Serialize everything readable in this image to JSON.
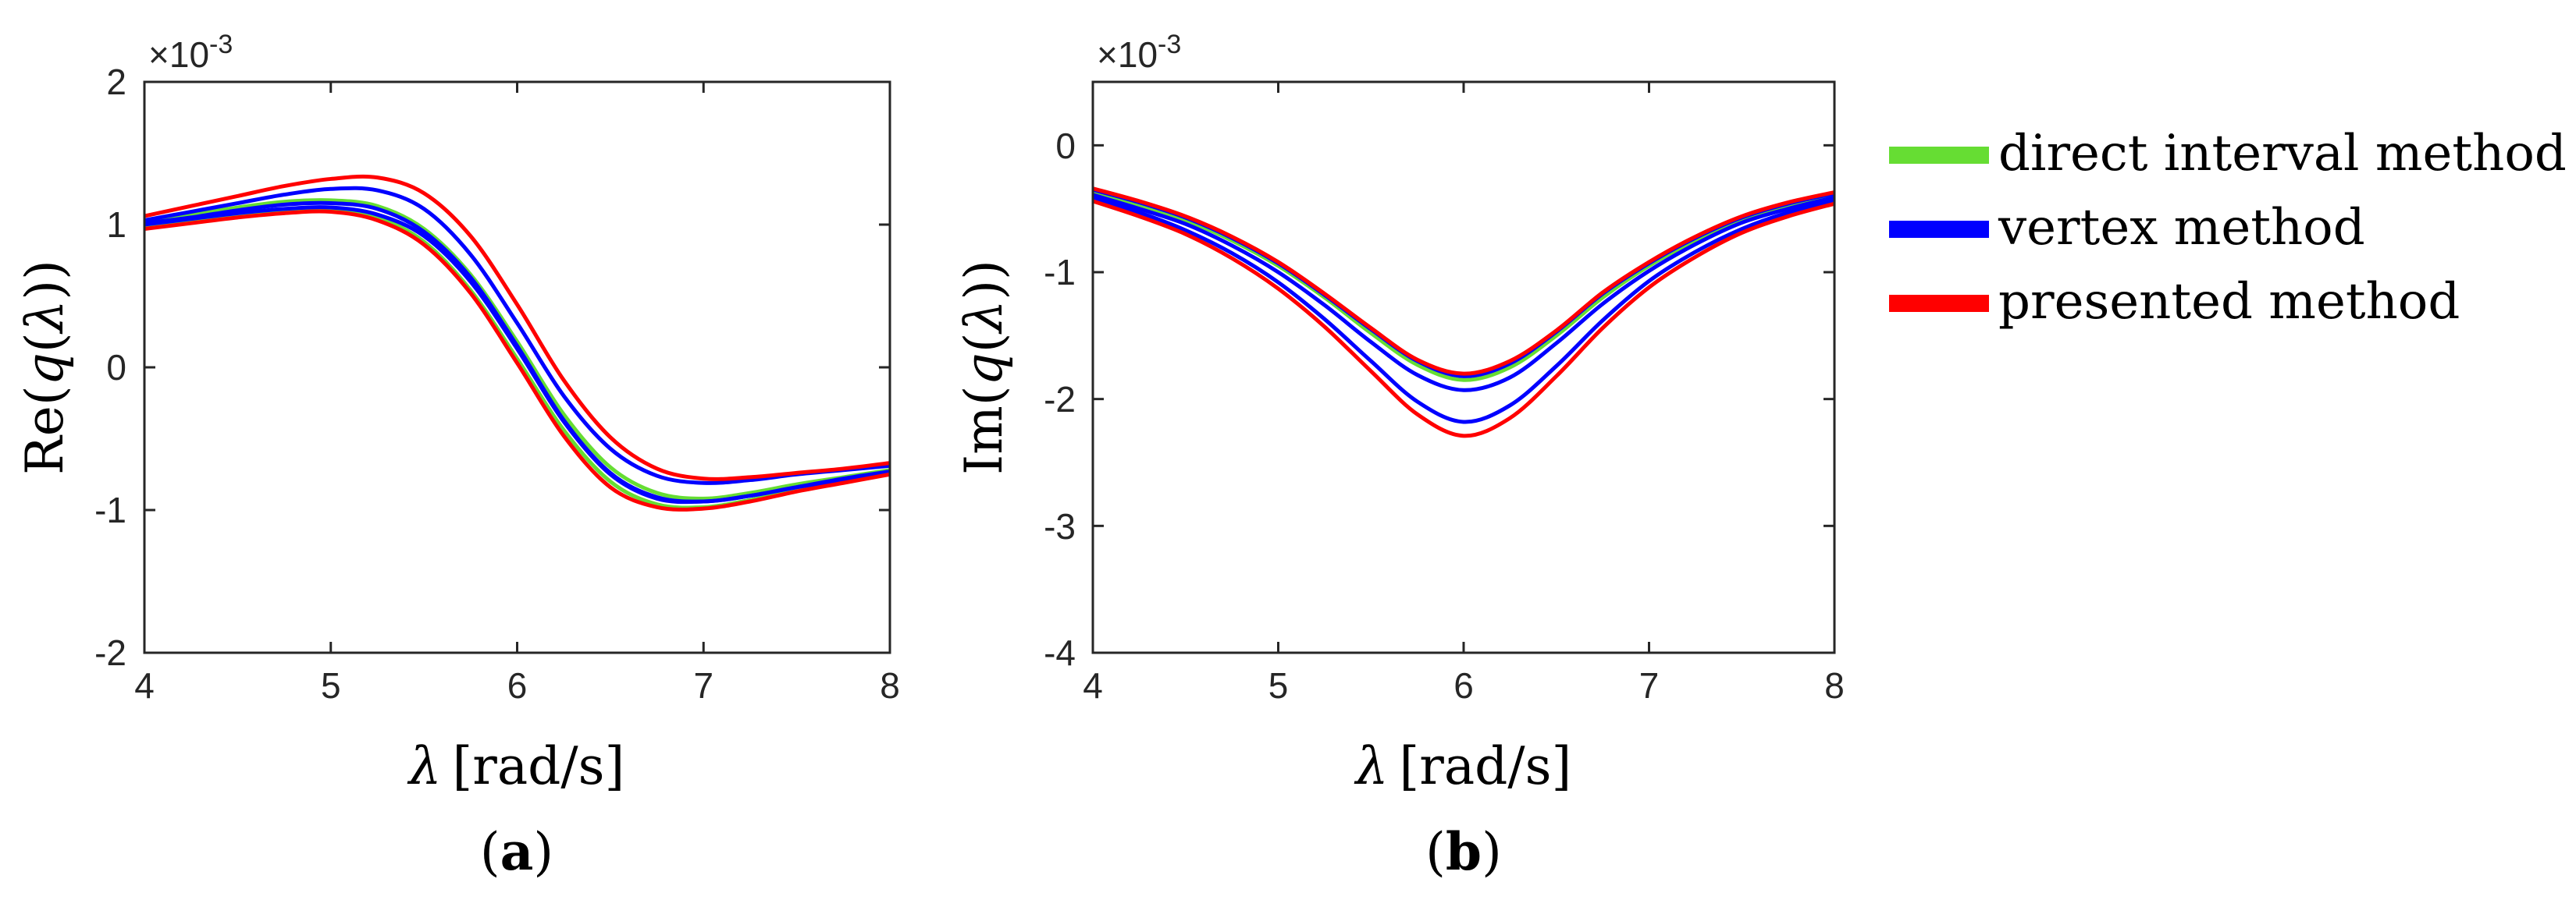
{
  "chart_data": [
    {
      "type": "line",
      "panel_label": {
        "before": "(",
        "letter": "a",
        "after": ")"
      },
      "xlabel": {
        "symbol": "λ",
        "unit": "[rad/s]"
      },
      "ylabel": {
        "prefix": "Re(",
        "q": "q",
        "open": "(",
        "symbol": "λ",
        "close": "))"
      },
      "exponent": {
        "prefix": "×10",
        "power": "-3"
      },
      "xlim": [
        4,
        8
      ],
      "ylim": [
        -2,
        2
      ],
      "xticks": [
        "4",
        "5",
        "6",
        "7",
        "8"
      ],
      "yticks": [
        "-2",
        "-1",
        "0",
        "1",
        "2"
      ],
      "x": [
        4.0,
        4.25,
        4.5,
        4.75,
        5.0,
        5.25,
        5.5,
        5.75,
        6.0,
        6.25,
        6.5,
        6.75,
        7.0,
        7.25,
        7.5,
        7.75,
        8.0
      ],
      "series": [
        {
          "name": "direct interval method",
          "color": "#66dd33",
          "values": [
            1.02,
            1.07,
            1.12,
            1.16,
            1.17,
            1.13,
            0.97,
            0.65,
            0.18,
            -0.33,
            -0.7,
            -0.88,
            -0.92,
            -0.88,
            -0.82,
            -0.77,
            -0.72
          ]
        },
        {
          "name": "direct interval method",
          "color": "#66dd33",
          "values": [
            0.99,
            1.03,
            1.07,
            1.1,
            1.11,
            1.05,
            0.88,
            0.54,
            0.06,
            -0.44,
            -0.8,
            -0.96,
            -0.98,
            -0.93,
            -0.86,
            -0.8,
            -0.74
          ]
        },
        {
          "name": "vertex method",
          "color": "#0000ff",
          "values": [
            1.03,
            1.09,
            1.15,
            1.21,
            1.25,
            1.24,
            1.11,
            0.79,
            0.31,
            -0.2,
            -0.57,
            -0.76,
            -0.81,
            -0.79,
            -0.75,
            -0.72,
            -0.69
          ]
        },
        {
          "name": "vertex method",
          "color": "#0000ff",
          "values": [
            1.01,
            1.05,
            1.1,
            1.14,
            1.15,
            1.11,
            0.95,
            0.63,
            0.15,
            -0.37,
            -0.74,
            -0.91,
            -0.94,
            -0.9,
            -0.84,
            -0.79,
            -0.73
          ]
        },
        {
          "name": "vertex method",
          "color": "#0000ff",
          "values": [
            1.0,
            1.04,
            1.08,
            1.11,
            1.12,
            1.07,
            0.92,
            0.6,
            0.13,
            -0.38,
            -0.75,
            -0.92,
            -0.94,
            -0.9,
            -0.84,
            -0.78,
            -0.73
          ]
        },
        {
          "name": "presented method",
          "color": "#ff0000",
          "values": [
            1.06,
            1.13,
            1.2,
            1.27,
            1.32,
            1.33,
            1.22,
            0.92,
            0.44,
            -0.09,
            -0.49,
            -0.71,
            -0.78,
            -0.77,
            -0.74,
            -0.71,
            -0.67
          ]
        },
        {
          "name": "presented method",
          "color": "#ff0000",
          "values": [
            0.97,
            1.01,
            1.05,
            1.08,
            1.09,
            1.03,
            0.86,
            0.52,
            0.03,
            -0.48,
            -0.84,
            -0.98,
            -0.99,
            -0.94,
            -0.87,
            -0.81,
            -0.75
          ]
        }
      ]
    },
    {
      "type": "line",
      "panel_label": {
        "before": "(",
        "letter": "b",
        "after": ")"
      },
      "xlabel": {
        "symbol": "λ",
        "unit": "[rad/s]"
      },
      "ylabel": {
        "prefix": "Im(",
        "q": "q",
        "open": "(",
        "symbol": "λ",
        "close": "))"
      },
      "exponent": {
        "prefix": "×10",
        "power": "-3"
      },
      "xlim": [
        4,
        8
      ],
      "ylim": [
        -4,
        0.5
      ],
      "xticks": [
        "4",
        "5",
        "6",
        "7",
        "8"
      ],
      "yticks": [
        "-4",
        "-3",
        "-2",
        "-1",
        "0"
      ],
      "x": [
        4.0,
        4.25,
        4.5,
        4.75,
        5.0,
        5.25,
        5.5,
        5.75,
        6.0,
        6.25,
        6.5,
        6.75,
        7.0,
        7.25,
        7.5,
        7.75,
        8.0
      ],
      "series": [
        {
          "name": "direct interval method",
          "color": "#66dd33",
          "values": [
            -0.37,
            -0.47,
            -0.59,
            -0.75,
            -0.95,
            -1.2,
            -1.48,
            -1.73,
            -1.85,
            -1.75,
            -1.5,
            -1.2,
            -0.95,
            -0.75,
            -0.59,
            -0.48,
            -0.4
          ]
        },
        {
          "name": "vertex method",
          "color": "#0000ff",
          "values": [
            -0.35,
            -0.45,
            -0.57,
            -0.73,
            -0.93,
            -1.18,
            -1.45,
            -1.7,
            -1.82,
            -1.72,
            -1.47,
            -1.17,
            -0.93,
            -0.73,
            -0.57,
            -0.46,
            -0.38
          ]
        },
        {
          "name": "vertex method",
          "color": "#0000ff",
          "values": [
            -0.39,
            -0.5,
            -0.62,
            -0.79,
            -1.0,
            -1.26,
            -1.55,
            -1.81,
            -1.93,
            -1.83,
            -1.56,
            -1.25,
            -0.99,
            -0.78,
            -0.61,
            -0.5,
            -0.41
          ]
        },
        {
          "name": "vertex method",
          "color": "#0000ff",
          "values": [
            -0.42,
            -0.53,
            -0.67,
            -0.85,
            -1.08,
            -1.37,
            -1.7,
            -2.02,
            -2.18,
            -2.05,
            -1.74,
            -1.38,
            -1.07,
            -0.84,
            -0.66,
            -0.53,
            -0.44
          ]
        },
        {
          "name": "presented method",
          "color": "#ff0000",
          "values": [
            -0.34,
            -0.44,
            -0.56,
            -0.72,
            -0.92,
            -1.17,
            -1.44,
            -1.69,
            -1.8,
            -1.7,
            -1.46,
            -1.16,
            -0.92,
            -0.72,
            -0.56,
            -0.45,
            -0.37
          ]
        },
        {
          "name": "presented method",
          "color": "#ff0000",
          "values": [
            -0.44,
            -0.56,
            -0.7,
            -0.89,
            -1.13,
            -1.43,
            -1.78,
            -2.12,
            -2.29,
            -2.15,
            -1.82,
            -1.44,
            -1.12,
            -0.88,
            -0.69,
            -0.56,
            -0.46
          ]
        }
      ]
    }
  ],
  "legend": {
    "placement": "right",
    "items": [
      {
        "label": "direct interval method",
        "color": "#66dd33"
      },
      {
        "label": "vertex method",
        "color": "#0000ff"
      },
      {
        "label": "presented method",
        "color": "#ff0000"
      }
    ]
  }
}
